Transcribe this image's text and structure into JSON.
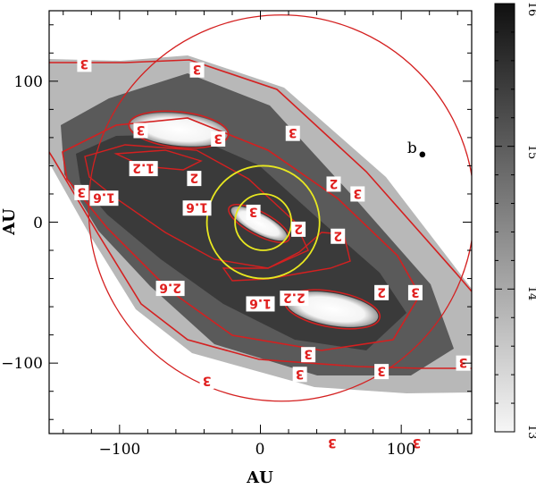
{
  "chart_data": {
    "type": "heatmap",
    "xlabel": "AU",
    "ylabel": "AU",
    "xlim": [
      -150,
      150
    ],
    "ylim": [
      -150,
      150
    ],
    "xticks": [
      -100,
      0,
      100
    ],
    "xtick_labels": [
      "−100",
      "0",
      "100"
    ],
    "yticks": [
      -100,
      0,
      100
    ],
    "ytick_labels": [
      "−100",
      "0",
      "100"
    ],
    "colorbar": {
      "range": [
        13,
        16
      ],
      "ticks": [
        13,
        14,
        15,
        16
      ],
      "tick_labels": [
        "13",
        "14",
        "15",
        "16"
      ],
      "colormap": "gray_reversed"
    },
    "colors": {
      "contour": "#d42020",
      "circle": "#e8e820",
      "outer_circle": "#d42020"
    },
    "planet": {
      "label": "b",
      "x": 115,
      "y": 48
    },
    "circles": [
      {
        "role": "outer",
        "cx": 15,
        "cy": 10,
        "r": 137
      },
      {
        "role": "yellow-outer",
        "cx": 2,
        "cy": 0,
        "r": 40
      },
      {
        "role": "yellow-inner",
        "cx": 2,
        "cy": 0,
        "r": 20
      }
    ],
    "contour_labels": [
      {
        "text": "3",
        "x": -125,
        "y": 112
      },
      {
        "text": "3",
        "x": -45,
        "y": 108
      },
      {
        "text": "3",
        "x": 23,
        "y": 63
      },
      {
        "text": "3",
        "x": -85,
        "y": 65
      },
      {
        "text": "3",
        "x": -30,
        "y": 59
      },
      {
        "text": "1.2",
        "x": -83,
        "y": 38
      },
      {
        "text": "3",
        "x": -127,
        "y": 21
      },
      {
        "text": "1.6",
        "x": -111,
        "y": 17
      },
      {
        "text": "2",
        "x": -47,
        "y": 31
      },
      {
        "text": "1.6",
        "x": -45,
        "y": 10
      },
      {
        "text": "3",
        "x": -5,
        "y": 7
      },
      {
        "text": "2",
        "x": 52,
        "y": 27
      },
      {
        "text": "3",
        "x": 69,
        "y": 20
      },
      {
        "text": "2",
        "x": 27,
        "y": -5
      },
      {
        "text": "2",
        "x": 55,
        "y": -10
      },
      {
        "text": "2.6",
        "x": -64,
        "y": -47
      },
      {
        "text": "1.6",
        "x": 0,
        "y": -58
      },
      {
        "text": "2.2",
        "x": 24,
        "y": -54
      },
      {
        "text": "2",
        "x": 86,
        "y": -50
      },
      {
        "text": "3",
        "x": 110,
        "y": -50
      },
      {
        "text": "3",
        "x": 34,
        "y": -94
      },
      {
        "text": "3",
        "x": 28,
        "y": -108
      },
      {
        "text": "3",
        "x": 86,
        "y": -106
      },
      {
        "text": "3",
        "x": -38,
        "y": -113
      },
      {
        "text": "3",
        "x": 144,
        "y": -100
      },
      {
        "text": "3",
        "x": 51,
        "y": -157
      },
      {
        "text": "3",
        "x": 111,
        "y": -157
      }
    ]
  }
}
